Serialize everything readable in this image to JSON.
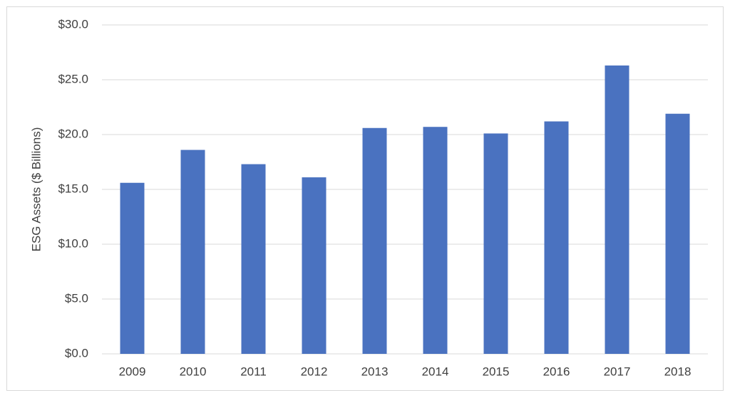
{
  "chart_data": {
    "type": "bar",
    "y_label": "ESG Assets ($ Billions)",
    "categories": [
      "2009",
      "2010",
      "2011",
      "2012",
      "2013",
      "2014",
      "2015",
      "2016",
      "2017",
      "2018"
    ],
    "values": [
      15.6,
      18.6,
      17.3,
      16.1,
      20.6,
      20.7,
      20.1,
      21.2,
      26.3,
      21.9
    ],
    "color": "#4a72c0",
    "ylim": [
      0,
      30
    ],
    "yticks": [
      {
        "value": 0,
        "label": "$0.0"
      },
      {
        "value": 5,
        "label": "$5.0"
      },
      {
        "value": 10,
        "label": "$10.0"
      },
      {
        "value": 15,
        "label": "$15.0"
      },
      {
        "value": 20,
        "label": "$20.0"
      },
      {
        "value": 25,
        "label": "$25.0"
      },
      {
        "value": 30,
        "label": "$30.0"
      }
    ],
    "grid": true
  }
}
